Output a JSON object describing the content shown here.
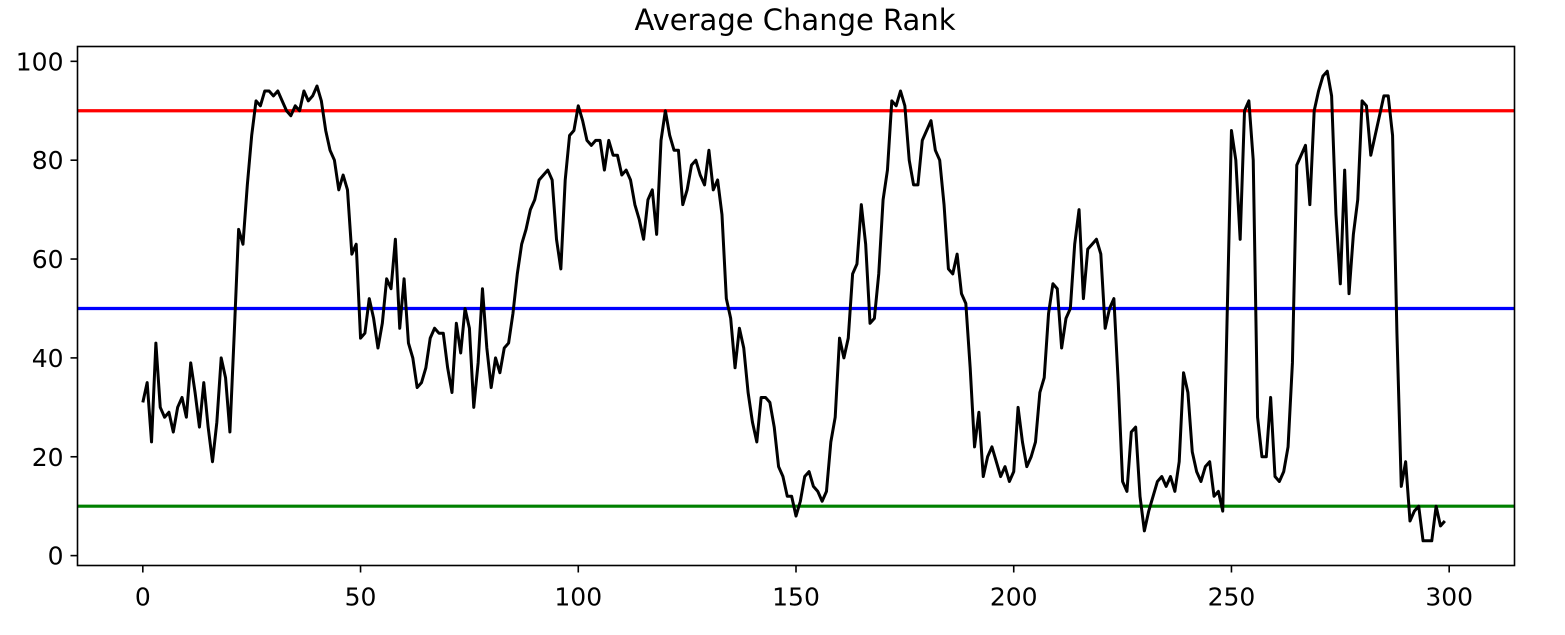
{
  "chart_data": {
    "type": "line",
    "title": "Average Change Rank",
    "xlabel": "",
    "ylabel": "",
    "xlim": [
      -15,
      315
    ],
    "ylim": [
      -2,
      103
    ],
    "xticks": [
      0,
      50,
      100,
      150,
      200,
      250,
      300
    ],
    "yticks": [
      0,
      20,
      40,
      60,
      80,
      100
    ],
    "grid": false,
    "series": [
      {
        "color": "#000000",
        "x_start": 0,
        "x_step": 1,
        "values": [
          31,
          35,
          23,
          43,
          30,
          28,
          29,
          25,
          30,
          32,
          28,
          39,
          33,
          26,
          35,
          26,
          19,
          27,
          40,
          36,
          25,
          45,
          66,
          63,
          75,
          85,
          92,
          91,
          94,
          94,
          93,
          94,
          92,
          90,
          89,
          91,
          90,
          94,
          92,
          93,
          95,
          92,
          86,
          82,
          80,
          74,
          77,
          74,
          61,
          63,
          44,
          45,
          52,
          48,
          42,
          47,
          56,
          54,
          64,
          46,
          56,
          43,
          40,
          34,
          35,
          38,
          44,
          46,
          45,
          45,
          38,
          33,
          47,
          41,
          50,
          46,
          30,
          39,
          54,
          42,
          34,
          40,
          37,
          42,
          43,
          49,
          57,
          63,
          66,
          70,
          72,
          76,
          77,
          78,
          76,
          64,
          58,
          76,
          85,
          86,
          91,
          88,
          84,
          83,
          84,
          84,
          78,
          84,
          81,
          81,
          77,
          78,
          76,
          71,
          68,
          64,
          72,
          74,
          65,
          84,
          90,
          85,
          82,
          82,
          71,
          74,
          79,
          80,
          77,
          75,
          82,
          74,
          76,
          69,
          52,
          48,
          38,
          46,
          42,
          33,
          27,
          23,
          32,
          32,
          31,
          26,
          18,
          16,
          12,
          12,
          8,
          11,
          16,
          17,
          14,
          13,
          11,
          13,
          23,
          28,
          44,
          40,
          44,
          57,
          59,
          71,
          63,
          47,
          48,
          57,
          72,
          78,
          92,
          91,
          94,
          91,
          80,
          75,
          75,
          84,
          86,
          88,
          82,
          80,
          71,
          58,
          57,
          61,
          53,
          51,
          38,
          22,
          29,
          16,
          20,
          22,
          19,
          16,
          18,
          15,
          17,
          30,
          23,
          18,
          20,
          23,
          33,
          36,
          49,
          55,
          54,
          42,
          48,
          50,
          63,
          70,
          52,
          62,
          63,
          64,
          61,
          46,
          50,
          52,
          35,
          15,
          13,
          25,
          26,
          12,
          5,
          9,
          12,
          15,
          16,
          14,
          16,
          13,
          19,
          37,
          33,
          21,
          17,
          15,
          18,
          19,
          12,
          13,
          9,
          48,
          86,
          80,
          64,
          90,
          92,
          80,
          28,
          20,
          20,
          32,
          16,
          15,
          17,
          22,
          39,
          79,
          81,
          83,
          71,
          90,
          94,
          97,
          98,
          93,
          69,
          55,
          78,
          53,
          65,
          72,
          92,
          91,
          81,
          85,
          89,
          93,
          93,
          85,
          45,
          14,
          19,
          7,
          9,
          10,
          3,
          3,
          3,
          10,
          6,
          7
        ]
      }
    ],
    "hlines": [
      {
        "y": 90,
        "color": "#ff0000"
      },
      {
        "y": 50,
        "color": "#0000ff"
      },
      {
        "y": 10,
        "color": "#008000"
      }
    ]
  }
}
